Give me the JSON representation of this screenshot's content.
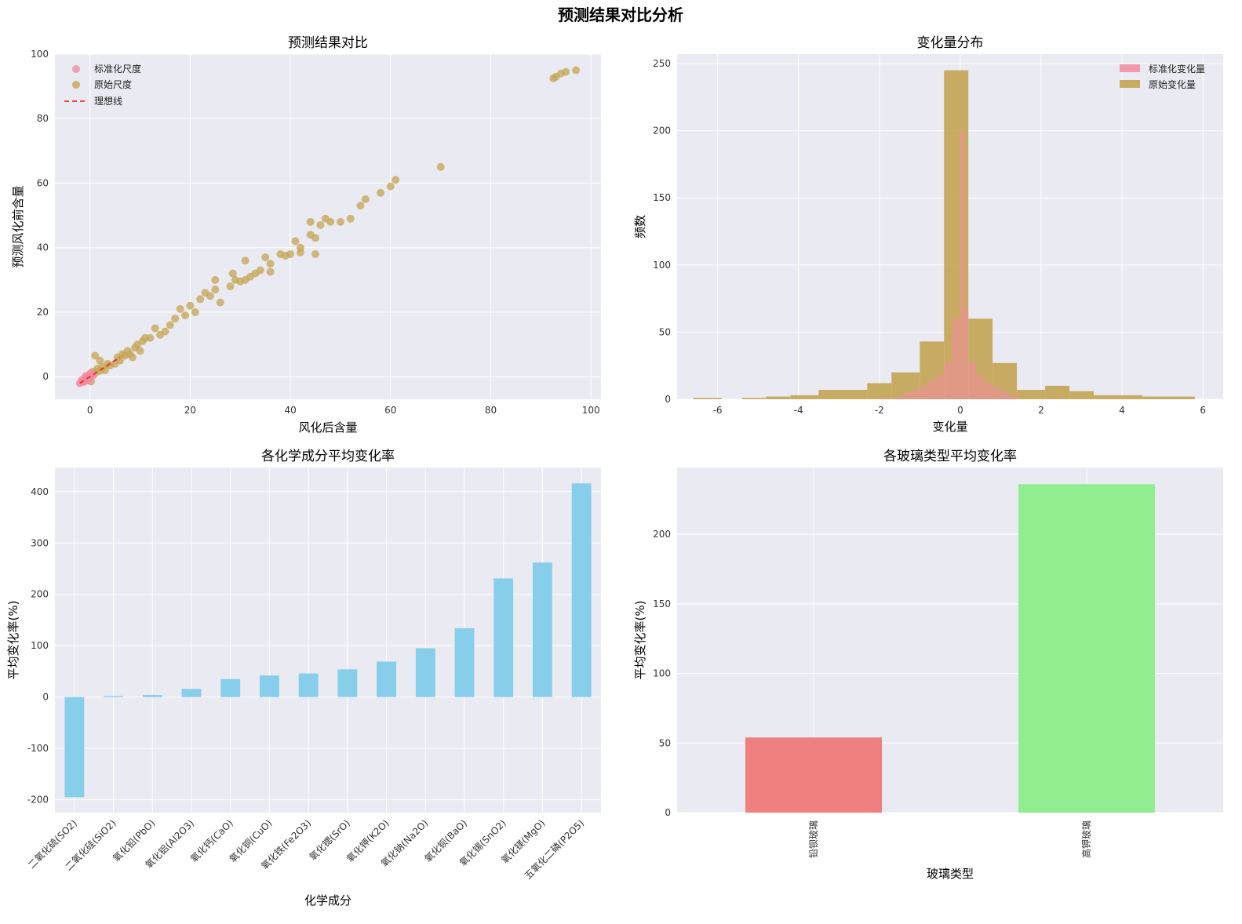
{
  "suptitle": "预测结果对比分析",
  "chart_data": [
    {
      "type": "scatter",
      "title": "预测结果对比",
      "xlabel": "风化后含量",
      "ylabel": "预测风化前含量",
      "xlim": [
        -7,
        102
      ],
      "ylim": [
        -7,
        100
      ],
      "xticks": [
        0,
        20,
        40,
        60,
        80,
        100
      ],
      "yticks": [
        0,
        20,
        40,
        60,
        80,
        100
      ],
      "grid": true,
      "legend_position": "top-left",
      "colors": {
        "标准化尺度": "#f28ba1",
        "原始尺度": "#c4a453",
        "理想线": "#ff2a2a"
      },
      "series": [
        {
          "name": "标准化尺度",
          "points": [
            [
              -2,
              -2
            ],
            [
              -1.5,
              -1.5
            ],
            [
              -1,
              -0.8
            ],
            [
              -1.2,
              -1.6
            ],
            [
              -0.5,
              -0.3
            ],
            [
              -0.8,
              0.2
            ],
            [
              -0.2,
              0.5
            ],
            [
              0,
              -0.6
            ],
            [
              0.3,
              0.8
            ],
            [
              -1.6,
              -1
            ],
            [
              0.6,
              0.4
            ],
            [
              -0.4,
              -1.2
            ],
            [
              0.1,
              1.0
            ],
            [
              -0.9,
              -0.2
            ]
          ]
        },
        {
          "name": "原始尺度",
          "points": [
            [
              0,
              0.5
            ],
            [
              0.5,
              1.5
            ],
            [
              1,
              1
            ],
            [
              1.5,
              2.5
            ],
            [
              2,
              1.8
            ],
            [
              2.5,
              3
            ],
            [
              3,
              2
            ],
            [
              3.5,
              4
            ],
            [
              4,
              3.5
            ],
            [
              0.2,
              -1.5
            ],
            [
              1,
              6.5
            ],
            [
              2,
              5
            ],
            [
              5,
              4
            ],
            [
              5.5,
              6
            ],
            [
              6,
              5
            ],
            [
              6.5,
              7
            ],
            [
              7,
              6.5
            ],
            [
              7.5,
              8
            ],
            [
              8,
              7
            ],
            [
              8.5,
              6
            ],
            [
              9,
              9
            ],
            [
              9.5,
              10
            ],
            [
              10,
              8
            ],
            [
              10.5,
              11
            ],
            [
              11,
              12
            ],
            [
              12,
              12
            ],
            [
              13,
              15
            ],
            [
              14,
              13
            ],
            [
              15,
              14
            ],
            [
              16,
              16
            ],
            [
              17,
              18
            ],
            [
              18,
              21
            ],
            [
              19,
              19
            ],
            [
              20,
              22
            ],
            [
              21,
              20
            ],
            [
              22,
              24
            ],
            [
              23,
              26
            ],
            [
              24,
              25
            ],
            [
              25,
              27
            ],
            [
              25,
              30
            ],
            [
              26,
              23
            ],
            [
              28,
              28
            ],
            [
              28.5,
              32
            ],
            [
              29,
              30
            ],
            [
              30,
              29.5
            ],
            [
              31,
              36
            ],
            [
              31,
              30
            ],
            [
              32,
              31
            ],
            [
              33,
              32
            ],
            [
              34,
              33
            ],
            [
              35,
              37
            ],
            [
              36,
              35
            ],
            [
              36,
              32.5
            ],
            [
              38,
              38
            ],
            [
              39,
              37.5
            ],
            [
              40,
              38
            ],
            [
              41,
              42
            ],
            [
              42,
              40
            ],
            [
              42,
              38.5
            ],
            [
              44,
              44
            ],
            [
              44,
              48
            ],
            [
              45,
              43
            ],
            [
              45,
              38
            ],
            [
              46,
              47
            ],
            [
              47,
              49
            ],
            [
              48,
              48
            ],
            [
              50,
              48
            ],
            [
              52,
              49
            ],
            [
              54,
              53
            ],
            [
              55,
              55
            ],
            [
              58,
              57
            ],
            [
              60,
              59
            ],
            [
              61,
              61
            ],
            [
              70,
              65
            ],
            [
              92.5,
              92.5
            ],
            [
              93,
              93
            ],
            [
              94,
              94
            ],
            [
              95,
              94.5
            ],
            [
              97,
              95
            ]
          ]
        },
        {
          "name": "理想线",
          "points": [
            [
              -2,
              -2
            ],
            [
              6,
              6
            ]
          ]
        }
      ]
    },
    {
      "type": "histogram",
      "title": "变化量分布",
      "xlabel": "变化量",
      "ylabel": "频数",
      "xlim": [
        -7,
        6.5
      ],
      "ylim": [
        0,
        257
      ],
      "xticks": [
        -6,
        -4,
        -2,
        0,
        2,
        4,
        6
      ],
      "yticks": [
        0,
        50,
        100,
        150,
        200,
        250
      ],
      "grid": true,
      "legend_position": "top-right",
      "colors": {
        "标准化变化量": "#f28ba1",
        "原始变化量": "#c4a453"
      },
      "series": [
        {
          "name": "标准化变化量",
          "bins": [
            [
              -2,
              -1.8,
              1
            ],
            [
              -1.6,
              -1.4,
              2
            ],
            [
              -1.4,
              -1.2,
              5
            ],
            [
              -1.2,
              -1.0,
              7
            ],
            [
              -1.0,
              -0.8,
              10
            ],
            [
              -0.8,
              -0.6,
              14
            ],
            [
              -0.6,
              -0.4,
              18
            ],
            [
              -0.4,
              -0.2,
              28
            ],
            [
              -0.2,
              0,
              60
            ],
            [
              0,
              0.1,
              200
            ],
            [
              0.1,
              0.2,
              68
            ],
            [
              0.2,
              0.4,
              28
            ],
            [
              0.4,
              0.6,
              18
            ],
            [
              0.6,
              0.8,
              12
            ],
            [
              0.8,
              1.0,
              9
            ],
            [
              1.0,
              1.2,
              6
            ],
            [
              1.2,
              1.4,
              3
            ]
          ]
        },
        {
          "name": "原始变化量",
          "bins": [
            [
              -6.6,
              -5.9,
              1
            ],
            [
              -5.4,
              -4.8,
              1
            ],
            [
              -4.8,
              -4.2,
              2
            ],
            [
              -4.2,
              -3.5,
              3
            ],
            [
              -3.5,
              -2.3,
              7
            ],
            [
              -2.3,
              -1.7,
              12
            ],
            [
              -1.7,
              -1.0,
              20
            ],
            [
              -1.0,
              -0.4,
              43
            ],
            [
              -0.4,
              0.2,
              245
            ],
            [
              0.2,
              0.8,
              60
            ],
            [
              0.8,
              1.4,
              27
            ],
            [
              1.4,
              2.1,
              7
            ],
            [
              2.1,
              2.7,
              10
            ],
            [
              2.7,
              3.3,
              6
            ],
            [
              3.3,
              4.5,
              3
            ],
            [
              4.5,
              5.8,
              2
            ]
          ]
        }
      ]
    },
    {
      "type": "bar",
      "title": "各化学成分平均变化率",
      "xlabel": "化学成分",
      "ylabel": "平均变化率(%)",
      "ylim": [
        -225,
        447
      ],
      "yticks": [
        -200,
        -100,
        0,
        100,
        200,
        300,
        400
      ],
      "grid": true,
      "color": "#87ceeb",
      "categories": [
        "二氧化硫(SO2)",
        "二氧化硅(SiO2)",
        "氧化铅(PbO)",
        "氧化铝(Al2O3)",
        "氧化钙(CaO)",
        "氧化铜(CuO)",
        "氧化铁(Fe2O3)",
        "氧化锶(SrO)",
        "氧化钾(K2O)",
        "氧化钠(Na2O)",
        "氧化钡(BaO)",
        "氧化锡(SnO2)",
        "氧化镁(MgO)",
        "五氧化二磷(P2O5)"
      ],
      "values": [
        -195,
        2,
        4,
        16,
        35,
        42,
        46,
        54,
        69,
        95,
        134,
        231,
        262,
        416
      ]
    },
    {
      "type": "bar",
      "title": "各玻璃类型平均变化率",
      "xlabel": "玻璃类型",
      "ylabel": "平均变化率(%)",
      "ylim": [
        0,
        248
      ],
      "yticks": [
        0,
        50,
        100,
        150,
        200
      ],
      "grid": true,
      "categories": [
        "铅钡玻璃",
        "高钾玻璃"
      ],
      "values": [
        54,
        236
      ],
      "colors": [
        "#f08080",
        "#90ee90"
      ]
    }
  ]
}
